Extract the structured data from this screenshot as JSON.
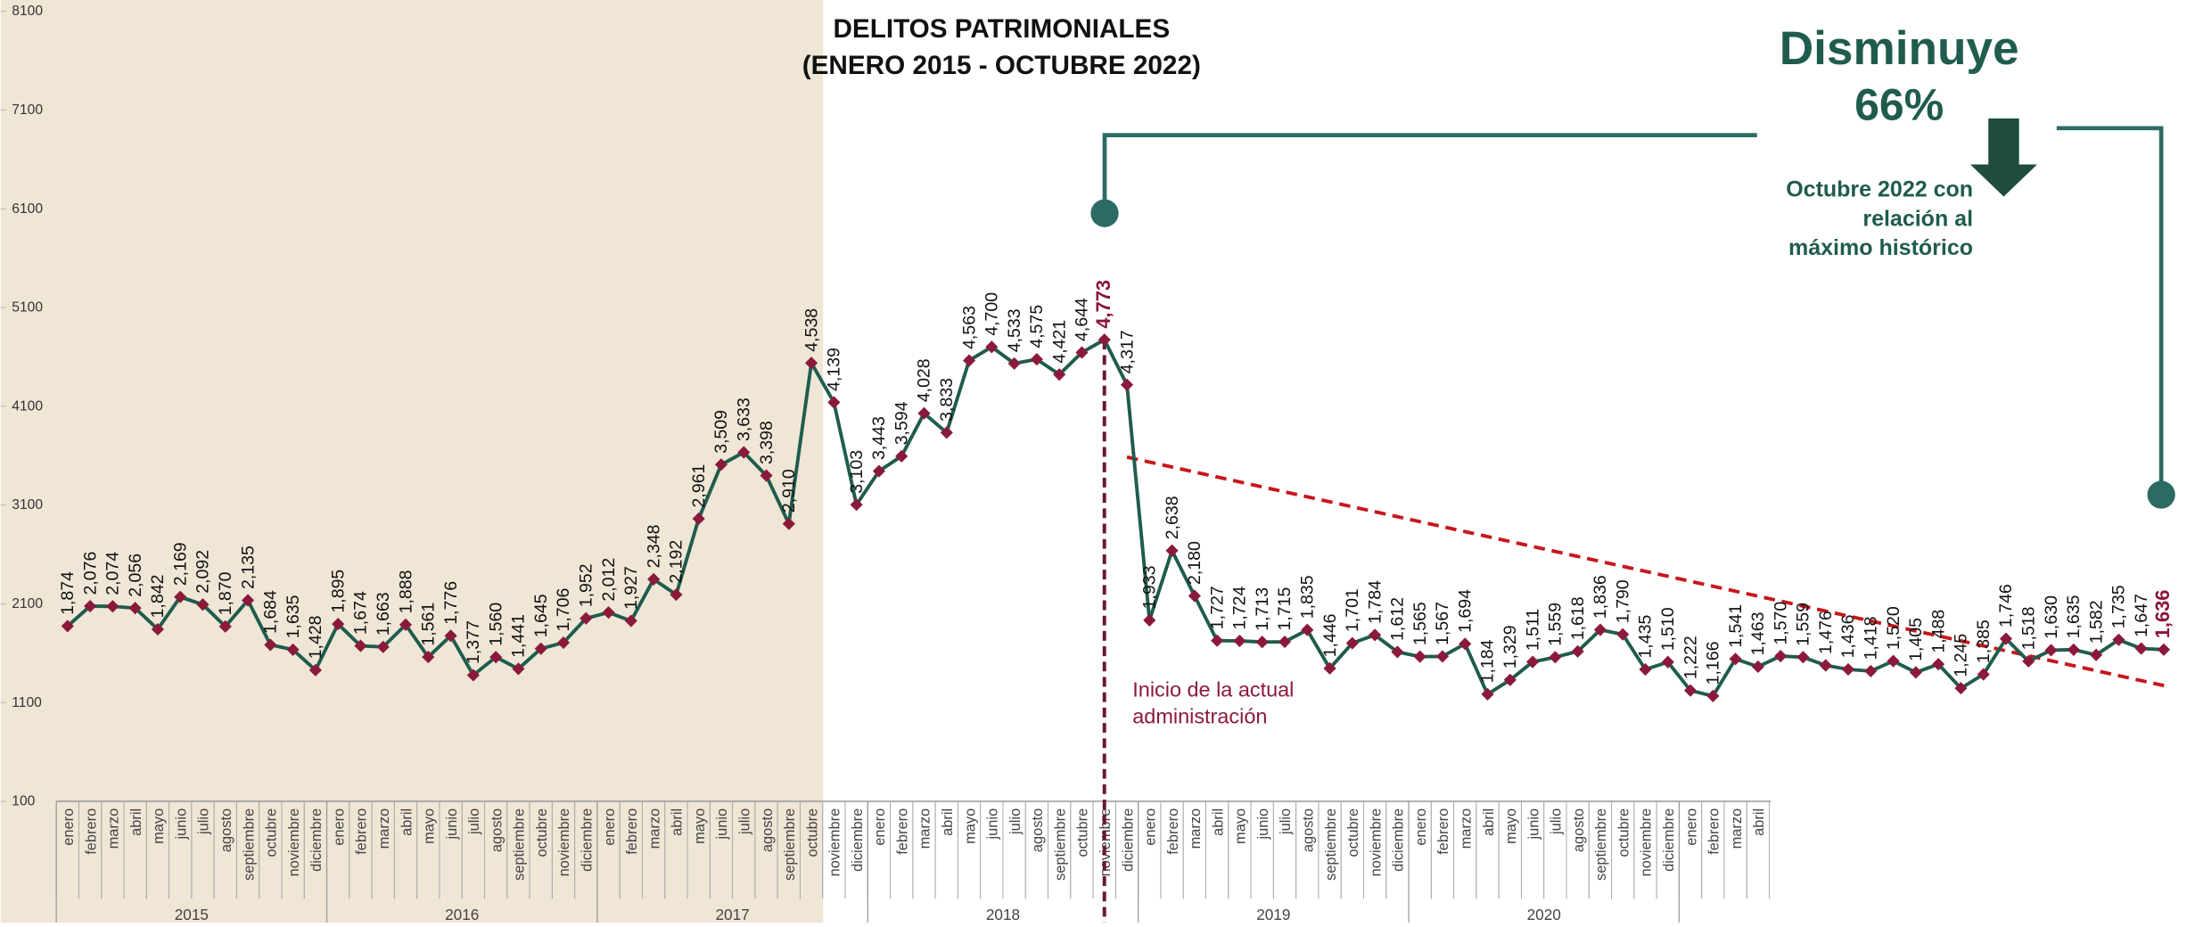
{
  "chart_data": {
    "type": "line",
    "title": "DELITOS PATRIMONIALES",
    "subtitle": "(ENERO 2015 - OCTUBRE 2022)",
    "annotations": {
      "decrease": [
        "Disminuye",
        "66%"
      ],
      "note": [
        "Octubre 2022 con",
        "relación al",
        "máximo histórico"
      ],
      "admin": [
        "Inicio de la actual",
        "administración"
      ]
    },
    "categories": [
      "enero",
      "febrero",
      "marzo",
      "abril",
      "mayo",
      "junio",
      "julio",
      "agosto",
      "septiembre",
      "octubre",
      "noviembre",
      "diciembre",
      "enero",
      "febrero",
      "marzo",
      "abril",
      "mayo",
      "junio",
      "julio",
      "agosto",
      "septiembre",
      "octubre",
      "noviembre",
      "diciembre",
      "enero",
      "febrero",
      "marzo",
      "abril",
      "mayo",
      "junio",
      "julio",
      "agosto",
      "septiembre",
      "octubre",
      "noviembre",
      "diciembre",
      "enero",
      "febrero",
      "marzo",
      "abril",
      "mayo",
      "junio",
      "julio",
      "agosto",
      "septiembre",
      "octubre",
      "noviembre",
      "diciembre",
      "enero",
      "febrero",
      "marzo",
      "abril",
      "mayo",
      "junio",
      "julio",
      "agosto",
      "septiembre",
      "octubre",
      "noviembre",
      "diciembre",
      "enero",
      "febrero",
      "marzo",
      "abril",
      "mayo",
      "junio",
      "julio",
      "agosto",
      "septiembre",
      "octubre",
      "noviembre",
      "diciembre",
      "enero",
      "febrero",
      "marzo",
      "abril",
      null,
      null,
      null,
      null,
      null,
      null,
      null,
      null,
      null,
      null,
      null,
      null,
      null,
      null,
      null,
      null,
      null,
      null
    ],
    "years": [
      "2015",
      "2016",
      "2017",
      "2018",
      "2019",
      "2020"
    ],
    "values": [
      1874,
      2076,
      2074,
      2056,
      1842,
      2169,
      2092,
      1870,
      2135,
      1684,
      1635,
      1428,
      1895,
      1674,
      1663,
      1888,
      1561,
      1776,
      1377,
      1560,
      1441,
      1645,
      1706,
      1952,
      2012,
      1927,
      2348,
      2192,
      2961,
      3509,
      3633,
      3398,
      2910,
      4538,
      4139,
      3103,
      3443,
      3594,
      4028,
      3833,
      4563,
      4700,
      4533,
      4575,
      4421,
      4644,
      4773,
      4317,
      1933,
      2638,
      2180,
      1727,
      1724,
      1713,
      1715,
      1835,
      1446,
      1701,
      1784,
      1612,
      1565,
      1567,
      1694,
      1184,
      1329,
      1511,
      1559,
      1618,
      1836,
      1790,
      1435,
      1510,
      1222,
      1166,
      1541,
      1463,
      1570,
      1559,
      1476,
      1436,
      1418,
      1520,
      1405,
      1488,
      1245,
      1385,
      1746,
      1518,
      1630,
      1635,
      1582,
      1735,
      1647,
      1636
    ],
    "value_labels": [
      "1,874",
      "2,076",
      "2,074",
      "2,056",
      "1,842",
      "2,169",
      "2,092",
      "1,870",
      "2,135",
      "1,684",
      "1,635",
      "1,428",
      "1,895",
      "1,674",
      "1,663",
      "1,888",
      "1,561",
      "1,776",
      "1,377",
      "1,560",
      "1,441",
      "1,645",
      "1,706",
      "1,952",
      "2,012",
      "1,927",
      "2,348",
      "2,192",
      "2,961",
      "3,509",
      "3,633",
      "3,398",
      "2,910",
      "4,538",
      "4,139",
      "3,103",
      "3,443",
      "3,594",
      "4,028",
      "3,833",
      "4,563",
      "4,700",
      "4,533",
      "4,575",
      "4,421",
      "4,644",
      "4,773",
      "4,317",
      "1,933",
      "2,638",
      "2,180",
      "1,727",
      "1,724",
      "1,713",
      "1,715",
      "1,835",
      "1,446",
      "1,701",
      "1,784",
      "1,612",
      "1,565",
      "1,567",
      "1,694",
      "1,184",
      "1,329",
      "1,511",
      "1,559",
      "1,618",
      "1,836",
      "1,790",
      "1,435",
      "1,510",
      "1,222",
      "1,166",
      "1,541",
      "1,463",
      "1,570",
      "1,559",
      "1,476",
      "1,436",
      "1,418",
      "1,520",
      "1,405",
      "1,488",
      "1,245",
      "1,385",
      "1,746",
      "1,518",
      "1,630",
      "1,635",
      "1,582",
      "1,735",
      "1,647",
      "1,636"
    ],
    "color": "#1f5c4e",
    "marker_color": "#8b1a3a",
    "highlight_color": "#8b1538",
    "trend_color": "#c8161d",
    "ylim": [
      100,
      8100
    ],
    "yticks": [
      100,
      1100,
      2100,
      3100,
      4100,
      5100,
      6100,
      7100,
      8100
    ]
  }
}
